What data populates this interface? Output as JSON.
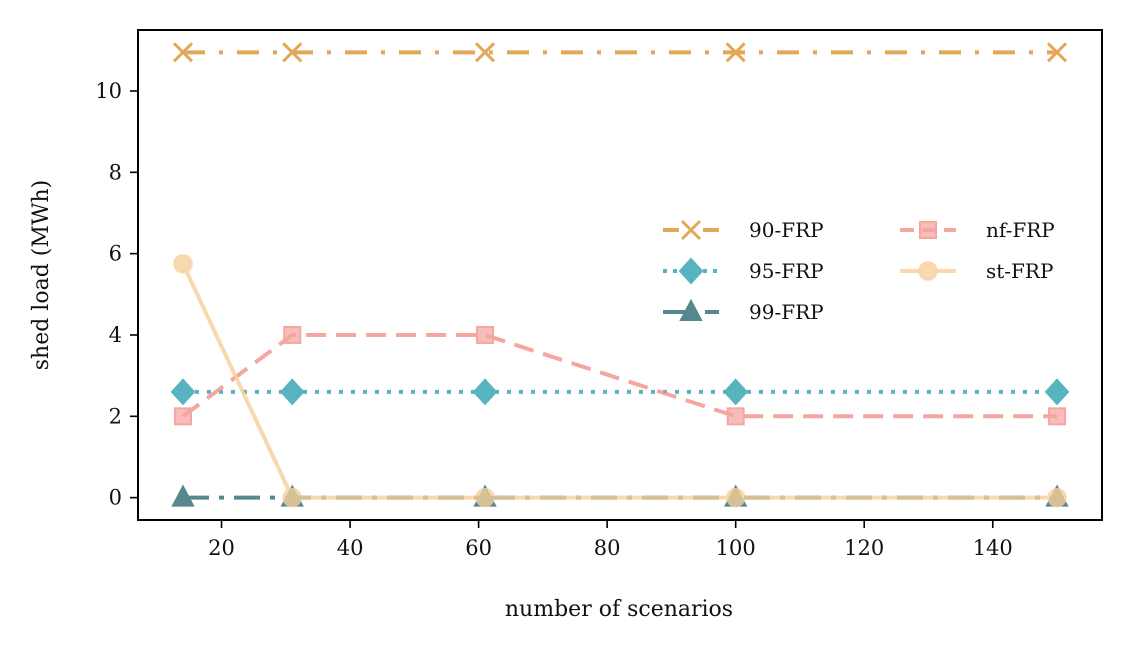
{
  "chart_data": {
    "type": "line",
    "title": "",
    "xlabel": "number of scenarios",
    "ylabel": "shed load (MWh)",
    "xlim": [
      7,
      157
    ],
    "ylim": [
      -0.55,
      11.5
    ],
    "xticks": [
      20,
      40,
      60,
      80,
      100,
      120,
      140
    ],
    "yticks": [
      0,
      2,
      4,
      6,
      8,
      10
    ],
    "grid": false,
    "legend_position": "center-right",
    "x": [
      14,
      31,
      61,
      100,
      150
    ],
    "series": [
      {
        "name": "90-FRP",
        "values": [
          10.95,
          10.95,
          10.95,
          10.95,
          10.95
        ],
        "color": "#e3a857",
        "dash": "22 14 4 14",
        "marker": "x",
        "opacity": 1
      },
      {
        "name": "95-FRP",
        "values": [
          2.6,
          2.6,
          2.6,
          2.6,
          2.6
        ],
        "color": "#3aa8b3",
        "dash": "4 8",
        "marker": "diamond",
        "opacity": 0.85
      },
      {
        "name": "99-FRP",
        "values": [
          0,
          0,
          0,
          0,
          0
        ],
        "color": "#2c6a72",
        "dash": "26 10 5 10",
        "marker": "triangle",
        "opacity": 0.8
      },
      {
        "name": "nf-FRP",
        "values": [
          2,
          4,
          4,
          2,
          2
        ],
        "color": "#f4908a",
        "dash": "20 10",
        "marker": "square",
        "opacity": 0.8
      },
      {
        "name": "st-FRP",
        "values": [
          5.75,
          0,
          0,
          0,
          0
        ],
        "color": "#f7cf98",
        "dash": "",
        "marker": "circle",
        "opacity": 0.8
      }
    ]
  }
}
